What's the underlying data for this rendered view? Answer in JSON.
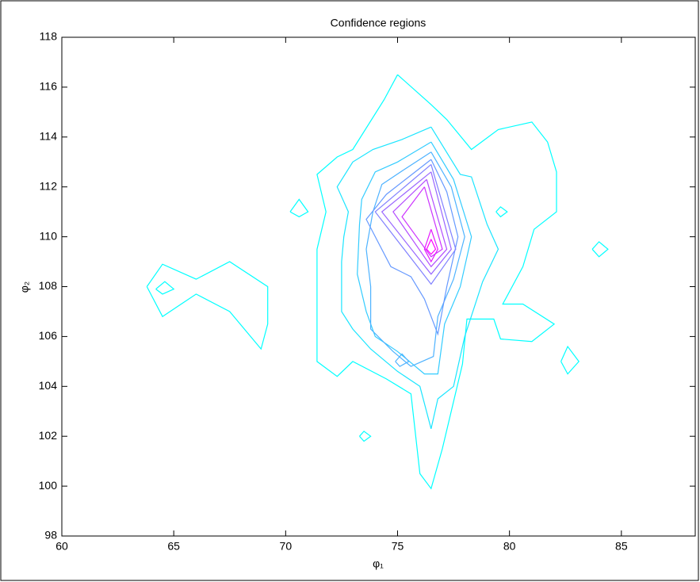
{
  "chart_data": {
    "type": "contour",
    "title": "Confidence regions",
    "x_label": "φ₁",
    "y_label": "φ₂",
    "xlim": [
      60,
      88.3
    ],
    "xticks": [
      60,
      65,
      70,
      75,
      80,
      85
    ],
    "ylim": [
      98,
      118
    ],
    "yticks": [
      98,
      100,
      102,
      104,
      106,
      108,
      110,
      112,
      114,
      116,
      118
    ],
    "series": [
      {
        "color": "#00ffff",
        "x": [
          75,
          76.5,
          77.2,
          78.3,
          79.5,
          81,
          81.7,
          82.1,
          82.1,
          81.1,
          80.6,
          79.7,
          80.6,
          82,
          81,
          79.6,
          79.3,
          78.1,
          77.9,
          77,
          76.5,
          76,
          75.6,
          74.5,
          73,
          72.3,
          71.4,
          71.4,
          71.8,
          71.4,
          72.3,
          73,
          74.4,
          75,
          null,
          63.8,
          64.5,
          66,
          67.5,
          69.2,
          69.2,
          68.9,
          67.5,
          66,
          64.5,
          63.8,
          null,
          64.2,
          64.6,
          65,
          64.5,
          64.2,
          null,
          70.2,
          70.6,
          71,
          70.6,
          70.2,
          null,
          73.3,
          73.5,
          73.8,
          73.5,
          73.3,
          null,
          79.4,
          79.6,
          79.9,
          79.6,
          79.4,
          null,
          83.7,
          84,
          84.4,
          84,
          83.7,
          null,
          82.3,
          82.6,
          83.1,
          82.6,
          82.3
        ],
        "y": [
          116.5,
          115.3,
          114.7,
          113.5,
          114.3,
          114.6,
          113.8,
          112.6,
          111,
          110.3,
          108.8,
          107.3,
          107.3,
          106.5,
          105.8,
          105.9,
          106.7,
          106.7,
          104.9,
          101.5,
          99.9,
          100.5,
          103.7,
          104.3,
          105,
          104.4,
          105,
          109.5,
          111,
          112.5,
          113.2,
          113.5,
          115.5,
          116.5,
          null,
          108,
          108.9,
          108.3,
          109,
          108,
          106.5,
          105.5,
          107,
          107.7,
          106.8,
          108,
          null,
          107.9,
          108.2,
          107.9,
          107.7,
          107.9,
          null,
          111,
          111.5,
          111,
          110.8,
          111,
          null,
          102,
          102.2,
          102,
          101.8,
          102,
          null,
          111,
          111.2,
          111,
          110.8,
          111,
          null,
          109.5,
          109.8,
          109.5,
          109.2,
          109.5,
          null,
          105,
          105.6,
          105,
          104.5,
          105
        ]
      },
      {
        "color": "#1ae5ff",
        "x": [
          76.5,
          77.8,
          78.3,
          79,
          79.5,
          78.8,
          78,
          77.5,
          76.8,
          76.5,
          76,
          75,
          73.8,
          73,
          72.5,
          72.5,
          72.6,
          72.8,
          72.3,
          73,
          73.9,
          75.2,
          76.5
        ],
        "y": [
          114.4,
          112.5,
          112.4,
          110.5,
          109.5,
          108.2,
          106,
          104,
          103.5,
          102.3,
          104,
          104.6,
          105.5,
          106.3,
          107,
          109,
          110,
          111,
          112,
          113,
          113.5,
          113.9,
          114.4
        ]
      },
      {
        "color": "#33ccff",
        "x": [
          76.5,
          77.5,
          78.3,
          77.8,
          77.1,
          76.8,
          76.2,
          75,
          74,
          73.6,
          73.2,
          73.3,
          73.4,
          74,
          75,
          76.5
        ],
        "y": [
          113.8,
          112.3,
          110,
          108,
          106.5,
          104.5,
          104.5,
          105.4,
          106,
          107,
          108.5,
          110.5,
          111.5,
          112.6,
          113,
          113.8
        ]
      },
      {
        "color": "#4db2ff",
        "x": [
          76.5,
          77.4,
          78,
          77.5,
          76.8,
          76.6,
          75.6,
          74.8,
          73.8,
          73.8,
          73.6,
          73.9,
          74.3,
          75.3,
          76.5,
          null,
          74.9,
          75.2,
          75.5,
          75.1,
          74.9
        ],
        "y": [
          113.4,
          112,
          110,
          108.3,
          106.8,
          105.2,
          104.8,
          105.4,
          106.3,
          108,
          109.5,
          111,
          112.1,
          112.7,
          113.4,
          null,
          105,
          105.3,
          105,
          104.8,
          105
        ]
      },
      {
        "color": "#6699ff",
        "x": [
          76.5,
          77.2,
          77.7,
          77.2,
          76.8,
          76.2,
          75.6,
          74.7,
          73.6,
          74.5,
          75.5,
          76.5
        ],
        "y": [
          113.1,
          111.8,
          110,
          108,
          106.1,
          107.5,
          108.4,
          108.8,
          110.7,
          111.7,
          112.4,
          113.1
        ]
      },
      {
        "color": "#8080ff",
        "x": [
          76.5,
          77.6,
          76.5,
          74,
          76.5
        ],
        "y": [
          112.9,
          109.5,
          108.1,
          111,
          112.9
        ]
      },
      {
        "color": "#9966ff",
        "x": [
          76.5,
          77.4,
          76.5,
          74.3,
          76.5
        ],
        "y": [
          112.6,
          109.5,
          108.5,
          111,
          112.6
        ]
      },
      {
        "color": "#b24cff",
        "x": [
          76.3,
          77.2,
          76.5,
          74.8,
          76.3
        ],
        "y": [
          112.3,
          109.5,
          108.8,
          111,
          112.3
        ]
      },
      {
        "color": "#cc33ff",
        "x": [
          76.2,
          77,
          76.5,
          75.2,
          76.2
        ],
        "y": [
          112,
          109.5,
          109.2,
          110.8,
          112
        ]
      },
      {
        "color": "#e51aff",
        "x": [
          76.5,
          76.8,
          76.5,
          76.2,
          76.5
        ],
        "y": [
          110.3,
          109.5,
          109,
          109.5,
          110.3
        ]
      },
      {
        "color": "#ff00ff",
        "x": [
          76.5,
          76.7,
          76.5,
          76.3,
          76.5
        ],
        "y": [
          109.9,
          109.5,
          109.3,
          109.5,
          109.9
        ]
      }
    ]
  }
}
